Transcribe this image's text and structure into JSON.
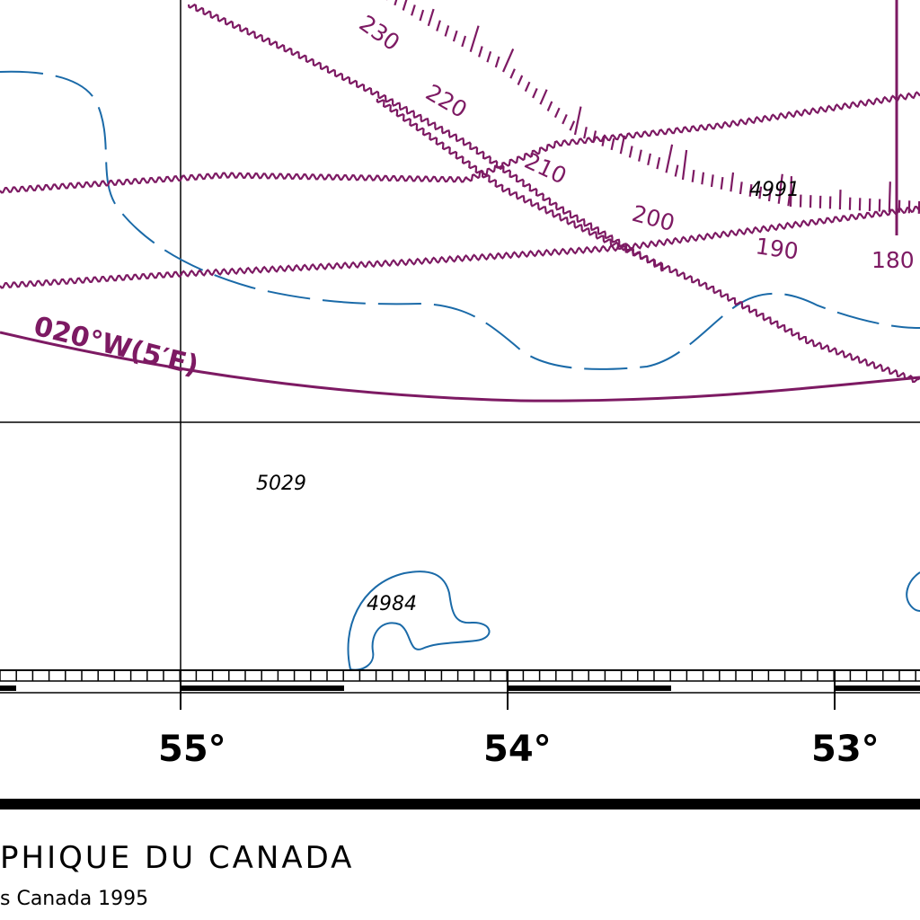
{
  "colors": {
    "aero": "#7d1a63",
    "depth_contour": "#1a6aa8",
    "ink": "#000000",
    "background": "#ffffff"
  },
  "soundings": [
    "4991",
    "5029",
    "4984"
  ],
  "loran_ticks": [
    "230",
    "220",
    "210",
    "200",
    "190",
    "180"
  ],
  "isogonic_label": "020°W(5′E)",
  "longitudes": [
    "55°",
    "54°",
    "53°"
  ],
  "footer": {
    "line1": "PHIQUE DU CANADA",
    "line2": "s Canada 1995"
  }
}
